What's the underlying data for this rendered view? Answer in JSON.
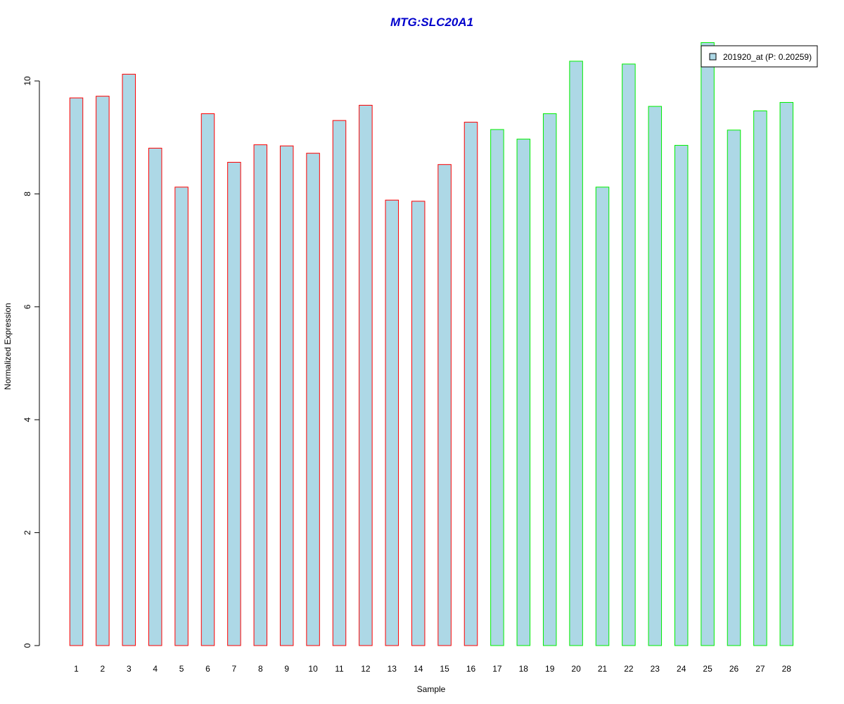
{
  "chart_data": {
    "type": "bar",
    "title": "MTG:SLC20A1",
    "xlabel": "Sample",
    "ylabel": "Normalized Expression",
    "categories": [
      "1",
      "2",
      "3",
      "4",
      "5",
      "6",
      "7",
      "8",
      "9",
      "10",
      "11",
      "12",
      "13",
      "14",
      "15",
      "16",
      "17",
      "18",
      "19",
      "20",
      "21",
      "22",
      "23",
      "24",
      "25",
      "26",
      "27",
      "28"
    ],
    "values": [
      9.7,
      9.73,
      10.12,
      8.81,
      8.12,
      9.42,
      8.56,
      8.87,
      8.85,
      8.72,
      9.3,
      9.57,
      7.89,
      7.87,
      8.52,
      9.27,
      9.14,
      8.97,
      9.42,
      10.35,
      8.12,
      10.3,
      9.55,
      8.86,
      10.68,
      9.13,
      9.47,
      9.62
    ],
    "groups": [
      {
        "samples": [
          1,
          16
        ],
        "border_color": "#ff0000"
      },
      {
        "samples": [
          17,
          28
        ],
        "border_color": "#00ee00"
      }
    ],
    "fill_color": "#add8e6",
    "ylim": [
      0,
      10.5
    ],
    "yticks": [
      0,
      2,
      4,
      6,
      8,
      10
    ],
    "grid": false,
    "legend": {
      "position": "top-right",
      "entries": [
        {
          "label": "201920_at (P: 0.20259)",
          "color": "#add8e6"
        }
      ]
    }
  }
}
